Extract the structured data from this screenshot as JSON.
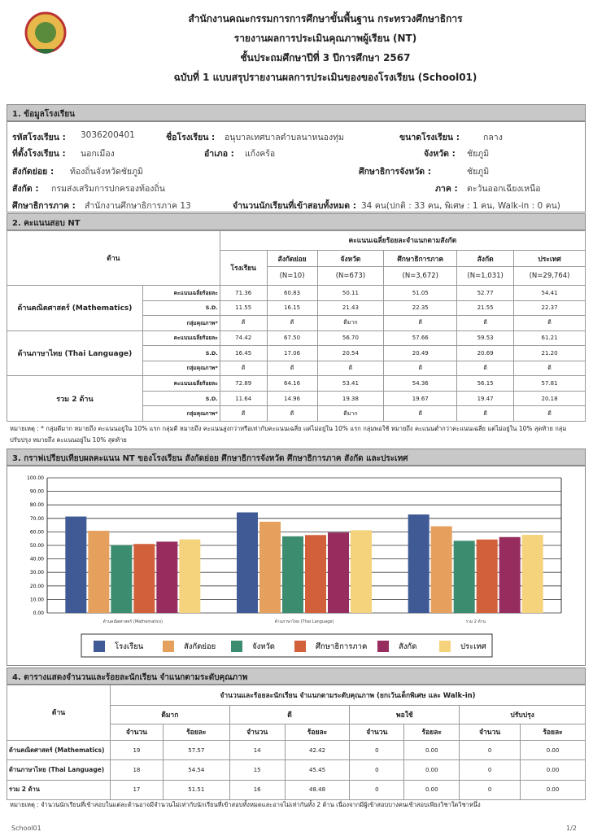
{
  "header": {
    "lines": [
      "สำนักงานคณะกรรมการการศึกษาขั้นพื้นฐาน กระทรวงศึกษาธิการ",
      "รายงานผลการประเมินคุณภาพผู้เรียน (NT)",
      "ชั้นประถมศึกษาปีที่ 3 ปีการศึกษา 2567",
      "ฉบับที่ 1 แบบสรุปรายงานผลการประเมินของของโรงเรียน (School01)"
    ]
  },
  "school": {
    "title": "1. ข้อมูลโรงเรียน",
    "fields": [
      {
        "label": "รหัสโรงเรียน :",
        "value": "3036200401"
      },
      {
        "label": "ชื่อโรงเรียน :",
        "value": "อนุบาลเทศบาลตำบลนาหนองทุ่ม"
      },
      {
        "label": "ขนาดโรงเรียน :",
        "value": "กลาง"
      },
      {
        "label": "ที่ตั้งโรงเรียน :",
        "value": "นอกเมือง"
      },
      {
        "label": "อำเภอ :",
        "value": "แก้งคร้อ"
      },
      {
        "label": "จังหวัด :",
        "value": "ชัยภูมิ"
      },
      {
        "label": "สังกัดย่อย :",
        "value": "ท้องถิ่นจังหวัดชัยภูมิ"
      },
      {
        "label": "ศึกษาธิการจังหวัด :",
        "value": "ชัยภูมิ"
      },
      {
        "label": "สังกัด :",
        "value": "กรมส่งเสริมการปกครองท้องถิ่น"
      },
      {
        "label": "ภาค :",
        "value": "ตะวันออกเฉียงเหนือ"
      },
      {
        "label": "ศึกษาธิการภาค :",
        "value": "สำนักงานศึกษาธิการภาค 13"
      },
      {
        "label": "จำนวนนักเรียนที่เข้าสอบทั้งหมด :",
        "value": "34 คน(ปกติ : 33 คน, พิเศษ : 1 คน, Walk-in : 0 คน)"
      }
    ]
  },
  "scores": {
    "title": "2. คะแนนสอบ NT",
    "dimension_header": "ด้าน",
    "group_header": "คะแนนเฉลี่ยร้อยละจำแนกตามสังกัด",
    "columns": [
      {
        "name": "โรงเรียน"
      },
      {
        "name": "สังกัดย่อย",
        "n": "(N=10)"
      },
      {
        "name": "จังหวัด",
        "n": "(N=673)"
      },
      {
        "name": "ศึกษาธิการภาค",
        "n": "(N=3,672)"
      },
      {
        "name": "สังกัด",
        "n": "(N=1,031)"
      },
      {
        "name": "ประเทศ",
        "n": "(N=29,764)"
      }
    ],
    "row_labels": [
      "คะแนนเฉลี่ยร้อยละ",
      "S.D.",
      "กลุ่มคุณภาพ*"
    ],
    "subjects": [
      {
        "name": "ด้านคณิตศาสตร์ (Mathematics)",
        "rows": [
          [
            "71.36",
            "60.83",
            "50.11",
            "51.05",
            "52.77",
            "54.41"
          ],
          [
            "11.55",
            "16.15",
            "21.43",
            "22.35",
            "21.55",
            "22.37"
          ],
          [
            "ดี",
            "ดี",
            "ดีมาก",
            "ดี",
            "ดี",
            "ดี"
          ]
        ]
      },
      {
        "name": "ด้านภาษาไทย (Thai Language)",
        "rows": [
          [
            "74.42",
            "67.50",
            "56.70",
            "57.66",
            "59.53",
            "61.21"
          ],
          [
            "16.45",
            "17.06",
            "20.54",
            "20.49",
            "20.69",
            "21.20"
          ],
          [
            "ดี",
            "ดี",
            "ดี",
            "ดี",
            "ดี",
            "ดี"
          ]
        ]
      },
      {
        "name": "รวม 2 ด้าน",
        "rows": [
          [
            "72.89",
            "64.16",
            "53.41",
            "54.36",
            "56.15",
            "57.81"
          ],
          [
            "11.64",
            "14.96",
            "19.38",
            "19.67",
            "19.47",
            "20.18"
          ],
          [
            "ดี",
            "ดี",
            "ดีมาก",
            "ดี",
            "ดี",
            "ดี"
          ]
        ]
      }
    ],
    "note": "หมายเหตุ : * กลุ่มดีมาก หมายถึง คะแนนอยู่ใน 10% แรก กลุ่มดี หมายถึง คะแนนสูงกว่าหรือเท่ากับคะแนนเฉลี่ย แต่ไม่อยู่ใน 10% แรก กลุ่มพอใช้ หมายถึง คะแนนต่ำกว่าคะแนนเฉลี่ย แต่ไม่อยู่ใน 10% สุดท้าย กลุ่มปรับปรุง หมายถึง คะแนนอยู่ใน 10% สุดท้าย"
  },
  "chart_data": {
    "type": "bar",
    "title": "3. กราฟเปรียบเทียบผลคะแนน NT ของโรงเรียน สังกัดย่อย ศึกษาธิการจังหวัด ศึกษาธิการภาค สังกัด และประเทศ",
    "categories": [
      "ด้านคณิตศาสตร์ (Mathematics)",
      "ด้านภาษาไทย (Thai Language)",
      "รวม 2 ด้าน"
    ],
    "series": [
      {
        "name": "โรงเรียน",
        "color": "#3f5a94",
        "values": [
          71.36,
          74.42,
          72.89
        ]
      },
      {
        "name": "สังกัดย่อย",
        "color": "#e5a05e",
        "values": [
          60.83,
          67.5,
          64.16
        ]
      },
      {
        "name": "จังหวัด",
        "color": "#3c8c6f",
        "values": [
          50.11,
          56.7,
          53.41
        ]
      },
      {
        "name": "ศึกษาธิการภาค",
        "color": "#d2603a",
        "values": [
          51.05,
          57.66,
          54.36
        ]
      },
      {
        "name": "สังกัด",
        "color": "#962d5e",
        "values": [
          52.77,
          59.53,
          56.15
        ]
      },
      {
        "name": "ประเทศ",
        "color": "#f5d27c",
        "values": [
          54.41,
          61.21,
          57.81
        ]
      }
    ],
    "ylim": [
      0,
      100
    ],
    "yticks": [
      {
        "value": 0,
        "label": "0.00"
      },
      {
        "value": 10,
        "label": "10.00"
      },
      {
        "value": 20,
        "label": "20.00"
      },
      {
        "value": 30,
        "label": "30.00"
      },
      {
        "value": 40,
        "label": "40.00"
      },
      {
        "value": 50,
        "label": "50.00"
      },
      {
        "value": 60,
        "label": "60.00"
      },
      {
        "value": 70,
        "label": "70.00"
      },
      {
        "value": 80,
        "label": "80.00"
      },
      {
        "value": 90,
        "label": "90.00"
      },
      {
        "value": 100,
        "label": "100.00"
      }
    ],
    "grid": true,
    "legend": "bottom"
  },
  "levels": {
    "title": "4. ตารางแสดงจำนวนและร้อยละนักเรียน จำแนกตามระดับคุณภาพ",
    "dimension_header": "ด้าน",
    "group_header": "จำนวนและร้อยละนักเรียน จำแนกตามระดับคุณภาพ (ยกเว้นเด็กพิเศษ และ  Walk-in)",
    "levels": [
      "ดีมาก",
      "ดี",
      "พอใช้",
      "ปรับปรุง"
    ],
    "subheads": [
      "จำนวน",
      "ร้อยละ"
    ],
    "rows": [
      {
        "name": "ด้านคณิตศาสตร์ (Mathematics)",
        "cells": [
          "19",
          "57.57",
          "14",
          "42.42",
          "0",
          "0.00",
          "0",
          "0.00"
        ]
      },
      {
        "name": "ด้านภาษาไทย (Thai Language)",
        "cells": [
          "18",
          "54.54",
          "15",
          "45.45",
          "0",
          "0.00",
          "0",
          "0.00"
        ]
      },
      {
        "name": "รวม 2 ด้าน",
        "cells": [
          "17",
          "51.51",
          "16",
          "48.48",
          "0",
          "0.00",
          "0",
          "0.00"
        ]
      }
    ],
    "note": "หมายเหตุ : จำนวนนักเรียนที่เข้าสอบในแต่ละด้านอาจมีจำนวนไม่เท่ากับนักเรียนที่เข้าสอบทั้งหมดและอาจไม่เท่ากันทั้ง 2 ด้าน เนื่องจากมีผู้เข้าสอบบางคนเข้าสอบเพียงวิชาใดวิชาหนึ่ง"
  },
  "footer": {
    "left": "School01",
    "right": "1/2"
  }
}
